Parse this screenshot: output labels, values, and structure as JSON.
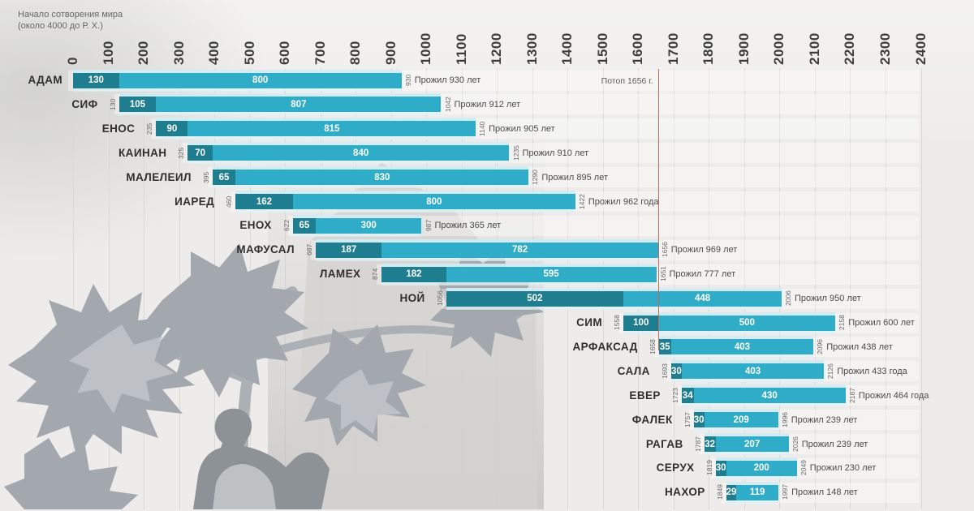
{
  "colors": {
    "background": "#edecea",
    "bar_early": "#1e7e90",
    "bar_late": "#2fadc8",
    "bar_halo": "#cfecf4",
    "grid": "#dbd8d4",
    "flood_line": "#bf6a5d",
    "axis_text": "#3e3e3e"
  },
  "chart_data": {
    "type": "bar",
    "orientation": "horizontal-gantt",
    "title_line1": "Начало сотворения мира",
    "title_line2": "(около 4000 до Р. Х.)",
    "x_axis": {
      "min": 0,
      "max": 2400,
      "step": 100,
      "grid": true,
      "ticks": [
        0,
        100,
        200,
        300,
        400,
        500,
        600,
        700,
        800,
        900,
        1000,
        1100,
        1200,
        1300,
        1400,
        1500,
        1600,
        1700,
        1800,
        1900,
        2000,
        2100,
        2200,
        2300,
        2400
      ]
    },
    "flood": {
      "label": "Потоп 1656 г.",
      "year": 1656
    },
    "rows": [
      {
        "name": "АДАМ",
        "start": 0,
        "seg1": 130,
        "seg2": 800,
        "end": 930,
        "lived": "Прожил 930 лет"
      },
      {
        "name": "СИФ",
        "start": 130,
        "seg1": 105,
        "seg2": 807,
        "end": 1042,
        "lived": "Прожил 912 лет"
      },
      {
        "name": "ЕНОС",
        "start": 235,
        "seg1": 90,
        "seg2": 815,
        "end": 1140,
        "lived": "Прожил 905 лет"
      },
      {
        "name": "КАИНАН",
        "start": 325,
        "seg1": 70,
        "seg2": 840,
        "end": 1235,
        "lived": "Прожил 910 лет"
      },
      {
        "name": "МАЛЕЛЕИЛ",
        "start": 395,
        "seg1": 65,
        "seg2": 830,
        "end": 1290,
        "lived": "Прожил 895 лет"
      },
      {
        "name": "ИАРЕД",
        "start": 460,
        "seg1": 162,
        "seg2": 800,
        "end": 1422,
        "lived": "Прожил 962 года"
      },
      {
        "name": "ЕНОХ",
        "start": 622,
        "seg1": 65,
        "seg2": 300,
        "end": 987,
        "lived": "Прожил 365 лет"
      },
      {
        "name": "МАФУСАЛ",
        "start": 687,
        "seg1": 187,
        "seg2": 782,
        "end": 1656,
        "lived": "Прожил 969 лет"
      },
      {
        "name": "ЛАМЕХ",
        "start": 874,
        "seg1": 182,
        "seg2": 595,
        "end": 1651,
        "lived": "Прожил 777 лет"
      },
      {
        "name": "НОЙ",
        "start": 1056,
        "seg1": 502,
        "seg2": 448,
        "end": 2006,
        "lived": "Прожил 950 лет"
      },
      {
        "name": "СИМ",
        "start": 1558,
        "seg1": 100,
        "seg2": 500,
        "end": 2158,
        "lived": "Прожил 600 лет"
      },
      {
        "name": "АРФАКСАД",
        "start": 1658,
        "seg1": 35,
        "seg2": 403,
        "end": 2096,
        "lived": "Прожил 438 лет"
      },
      {
        "name": "САЛА",
        "start": 1693,
        "seg1": 30,
        "seg2": 403,
        "end": 2126,
        "lived": "Прожил 433 года"
      },
      {
        "name": "ЕВЕР",
        "start": 1723,
        "seg1": 34,
        "seg2": 430,
        "end": 2187,
        "lived": "Прожил 464 года"
      },
      {
        "name": "ФАЛЕК",
        "start": 1757,
        "seg1": 30,
        "seg2": 209,
        "end": 1996,
        "lived": "Прожил 239 лет"
      },
      {
        "name": "РАГАВ",
        "start": 1787,
        "seg1": 32,
        "seg2": 207,
        "end": 2026,
        "lived": "Прожил 239 лет"
      },
      {
        "name": "СЕРУХ",
        "start": 1819,
        "seg1": 30,
        "seg2": 200,
        "end": 2049,
        "lived": "Прожил 230 лет"
      },
      {
        "name": "НАХОР",
        "start": 1849,
        "seg1": 29,
        "seg2": 119,
        "end": 1997,
        "lived": "Прожил 148 лет"
      }
    ]
  }
}
